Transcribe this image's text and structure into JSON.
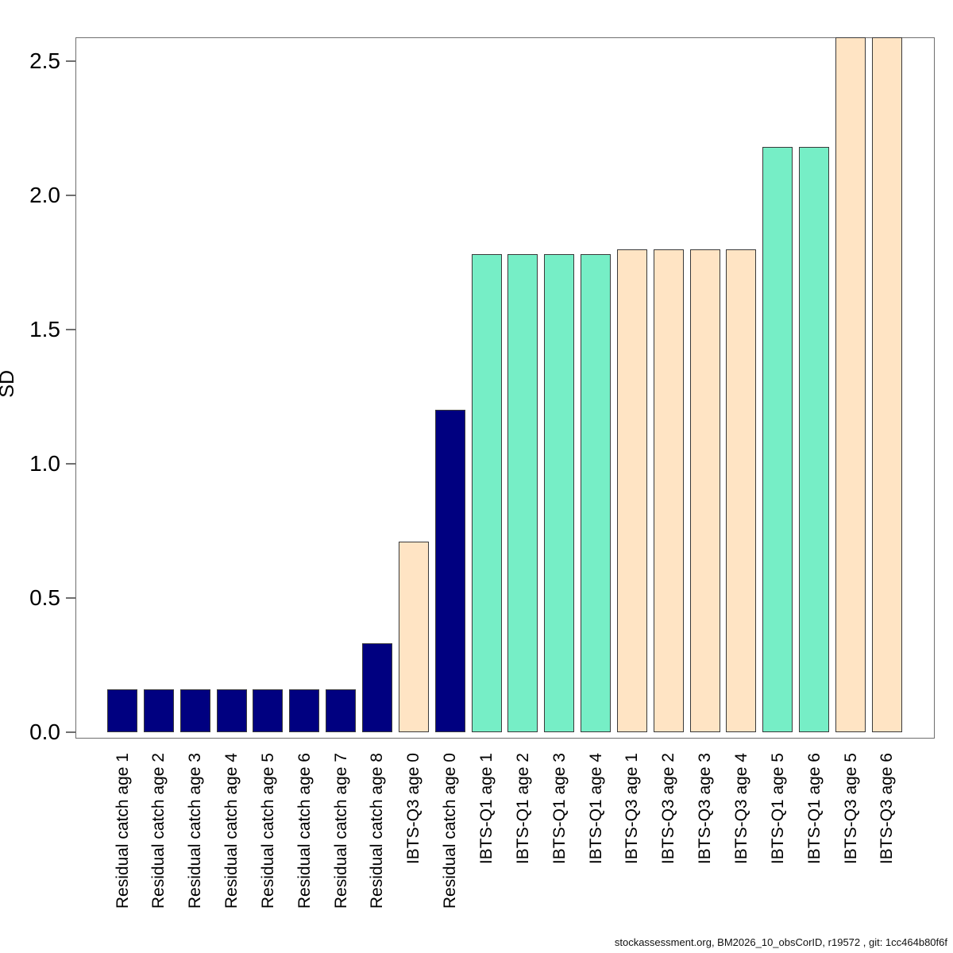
{
  "figure": {
    "ylab": "SD",
    "footer": "stockassessment.org, BM2026_10_obsCorID, r19572 , git: 1cc464b80f6f"
  },
  "chart_data": {
    "type": "bar",
    "title": "",
    "xlabel": "",
    "ylabel": "SD",
    "ylim": [
      0,
      2.6
    ],
    "grid": false,
    "legend_position": "none",
    "ytick_values": [
      0.0,
      0.5,
      1.0,
      1.5,
      2.0,
      2.5
    ],
    "ytick_labels": [
      "0.0",
      "0.5",
      "1.0",
      "1.5",
      "2.0",
      "2.5"
    ],
    "bar_border_color": "#3a3a3a",
    "box_color": "#6f6f6f",
    "palette": {
      "Residual catch": "#000080",
      "IBTS-Q1": "#76EEC6",
      "IBTS-Q3": "#FFE4C4"
    },
    "categories": [
      "Residual catch age 1",
      "Residual catch age 2",
      "Residual catch age 3",
      "Residual catch age 4",
      "Residual catch age 5",
      "Residual catch age 6",
      "Residual catch age 7",
      "Residual catch age 8",
      "IBTS-Q3 age 0",
      "Residual catch age 0",
      "IBTS-Q1 age 1",
      "IBTS-Q1 age 2",
      "IBTS-Q1 age 3",
      "IBTS-Q1 age 4",
      "IBTS-Q3 age 1",
      "IBTS-Q3 age 2",
      "IBTS-Q3 age 3",
      "IBTS-Q3 age 4",
      "IBTS-Q1 age 5",
      "IBTS-Q1 age 6",
      "IBTS-Q3 age 5",
      "IBTS-Q3 age 6"
    ],
    "bars": [
      {
        "label": "Residual catch age 1",
        "fleet": "Residual catch",
        "value": 0.16
      },
      {
        "label": "Residual catch age 2",
        "fleet": "Residual catch",
        "value": 0.16
      },
      {
        "label": "Residual catch age 3",
        "fleet": "Residual catch",
        "value": 0.16
      },
      {
        "label": "Residual catch age 4",
        "fleet": "Residual catch",
        "value": 0.16
      },
      {
        "label": "Residual catch age 5",
        "fleet": "Residual catch",
        "value": 0.16
      },
      {
        "label": "Residual catch age 6",
        "fleet": "Residual catch",
        "value": 0.16
      },
      {
        "label": "Residual catch age 7",
        "fleet": "Residual catch",
        "value": 0.16
      },
      {
        "label": "Residual catch age 8",
        "fleet": "Residual catch",
        "value": 0.33
      },
      {
        "label": "IBTS-Q3 age 0",
        "fleet": "IBTS-Q3",
        "value": 0.71
      },
      {
        "label": "Residual catch age 0",
        "fleet": "Residual catch",
        "value": 1.2
      },
      {
        "label": "IBTS-Q1 age 1",
        "fleet": "IBTS-Q1",
        "value": 1.78
      },
      {
        "label": "IBTS-Q1 age 2",
        "fleet": "IBTS-Q1",
        "value": 1.78
      },
      {
        "label": "IBTS-Q1 age 3",
        "fleet": "IBTS-Q1",
        "value": 1.78
      },
      {
        "label": "IBTS-Q1 age 4",
        "fleet": "IBTS-Q1",
        "value": 1.78
      },
      {
        "label": "IBTS-Q3 age 1",
        "fleet": "IBTS-Q3",
        "value": 1.8
      },
      {
        "label": "IBTS-Q3 age 2",
        "fleet": "IBTS-Q3",
        "value": 1.8
      },
      {
        "label": "IBTS-Q3 age 3",
        "fleet": "IBTS-Q3",
        "value": 1.8
      },
      {
        "label": "IBTS-Q3 age 4",
        "fleet": "IBTS-Q3",
        "value": 1.8
      },
      {
        "label": "IBTS-Q1 age 5",
        "fleet": "IBTS-Q1",
        "value": 2.18
      },
      {
        "label": "IBTS-Q1 age 6",
        "fleet": "IBTS-Q1",
        "value": 2.18
      },
      {
        "label": "IBTS-Q3 age 5",
        "fleet": "IBTS-Q3",
        "value": 2.59
      },
      {
        "label": "IBTS-Q3 age 6",
        "fleet": "IBTS-Q3",
        "value": 2.59
      }
    ]
  }
}
